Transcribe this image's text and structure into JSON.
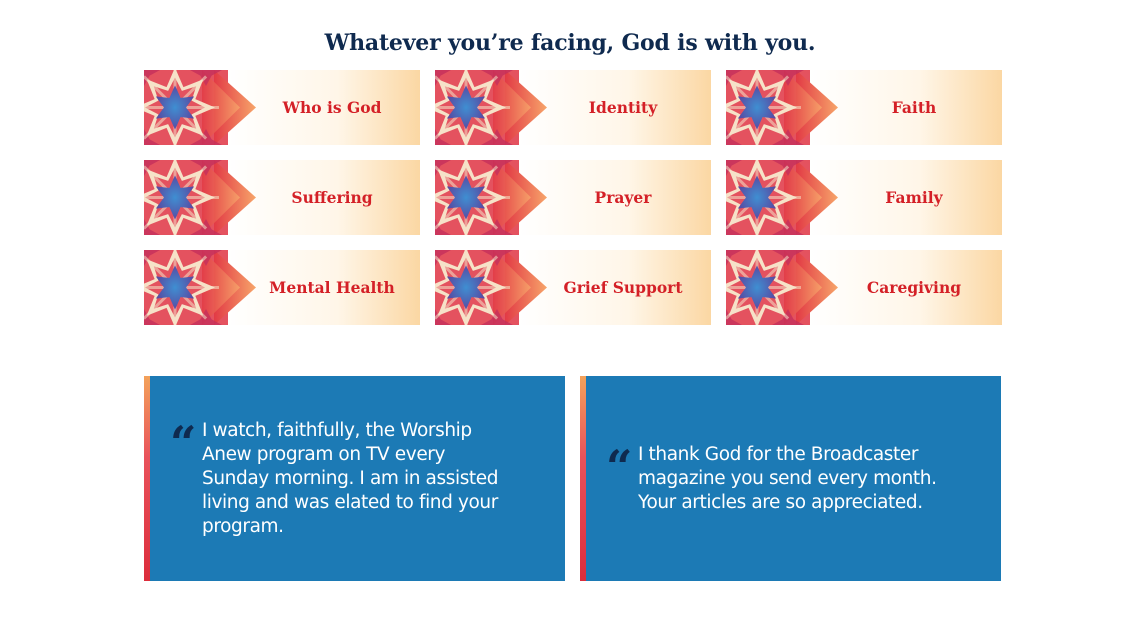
{
  "headline": "Whatever you’re facing, God is with you.",
  "colors": {
    "navy": "#0f2a4f",
    "red": "#d42027",
    "blue": "#1c7ab5",
    "peach": "#fbd7a3"
  },
  "topics": [
    {
      "label": "Who is God"
    },
    {
      "label": "Identity"
    },
    {
      "label": "Faith"
    },
    {
      "label": "Suffering"
    },
    {
      "label": "Prayer"
    },
    {
      "label": "Family"
    },
    {
      "label": "Mental Health"
    },
    {
      "label": "Grief Support"
    },
    {
      "label": "Caregiving"
    }
  ],
  "testimonials": [
    {
      "quote_mark": "“",
      "lines": [
        "I watch, faithfully, the Worship",
        "Anew program on TV every",
        "Sunday morning. I am in assisted",
        "living and was elated to find your",
        "program."
      ]
    },
    {
      "quote_mark": "“",
      "lines": [
        "I thank God for the Broadcaster",
        "magazine you send every month.",
        "Your articles are so appreciated."
      ]
    }
  ]
}
